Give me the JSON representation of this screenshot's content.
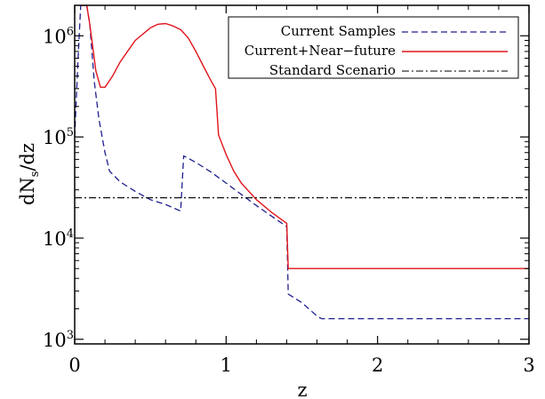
{
  "chart_data": {
    "type": "line",
    "title": "",
    "xlabel": "z",
    "ylabel": "dN",
    "ylabel_subscript": "s",
    "ylabel_suffix": "/dz",
    "xlim": [
      0,
      3
    ],
    "ylim": [
      900,
      2000000
    ],
    "yscale": "log",
    "grid": false,
    "legend_position": "top-right",
    "x_ticks": [
      {
        "value": 0,
        "label": "0"
      },
      {
        "value": 1,
        "label": "1"
      },
      {
        "value": 2,
        "label": "2"
      },
      {
        "value": 3,
        "label": "3"
      }
    ],
    "y_ticks": [
      {
        "value": 1000,
        "base": "10",
        "exp": "3"
      },
      {
        "value": 10000,
        "base": "10",
        "exp": "4"
      },
      {
        "value": 100000,
        "base": "10",
        "exp": "5"
      },
      {
        "value": 1000000,
        "base": "10",
        "exp": "6"
      }
    ],
    "series": [
      {
        "name": "Current Samples",
        "color": "#1f1f8f",
        "style": "dashed",
        "points": [
          [
            0.0,
            100000
          ],
          [
            0.02,
            500000
          ],
          [
            0.04,
            2000000
          ],
          [
            0.06,
            2000000
          ],
          [
            0.08,
            2000000
          ],
          [
            0.1,
            1300000
          ],
          [
            0.13,
            350000
          ],
          [
            0.16,
            150000
          ],
          [
            0.2,
            70000
          ],
          [
            0.23,
            46000
          ],
          [
            0.3,
            36000
          ],
          [
            0.4,
            29000
          ],
          [
            0.5,
            24000
          ],
          [
            0.6,
            21500
          ],
          [
            0.7,
            18500
          ],
          [
            0.72,
            65000
          ],
          [
            0.8,
            56000
          ],
          [
            0.9,
            45000
          ],
          [
            1.0,
            35000
          ],
          [
            1.1,
            27000
          ],
          [
            1.2,
            21000
          ],
          [
            1.3,
            16500
          ],
          [
            1.4,
            13000
          ],
          [
            1.41,
            2800
          ],
          [
            1.5,
            2300
          ],
          [
            1.6,
            1700
          ],
          [
            1.63,
            1600
          ],
          [
            2.0,
            1600
          ],
          [
            2.5,
            1600
          ],
          [
            3.0,
            1600
          ]
        ]
      },
      {
        "name": "Current+Near−future",
        "color": "#e0141b",
        "style": "solid",
        "points": [
          [
            0.04,
            2000000
          ],
          [
            0.08,
            2000000
          ],
          [
            0.1,
            1300000
          ],
          [
            0.14,
            450000
          ],
          [
            0.17,
            310000
          ],
          [
            0.2,
            310000
          ],
          [
            0.25,
            400000
          ],
          [
            0.3,
            550000
          ],
          [
            0.4,
            900000
          ],
          [
            0.5,
            1200000
          ],
          [
            0.55,
            1300000
          ],
          [
            0.6,
            1320000
          ],
          [
            0.65,
            1250000
          ],
          [
            0.7,
            1150000
          ],
          [
            0.75,
            950000
          ],
          [
            0.8,
            700000
          ],
          [
            0.85,
            500000
          ],
          [
            0.9,
            360000
          ],
          [
            0.93,
            300000
          ],
          [
            0.95,
            105000
          ],
          [
            1.0,
            67000
          ],
          [
            1.05,
            46000
          ],
          [
            1.1,
            35000
          ],
          [
            1.2,
            24000
          ],
          [
            1.3,
            18000
          ],
          [
            1.4,
            14000
          ],
          [
            1.41,
            5000
          ],
          [
            2.0,
            5000
          ],
          [
            2.5,
            5000
          ],
          [
            3.0,
            5000
          ]
        ]
      },
      {
        "name": "Standard Scenario",
        "color": "#000000",
        "style": "dashdot",
        "points": [
          [
            0.0,
            25000
          ],
          [
            3.0,
            25000
          ]
        ]
      }
    ]
  }
}
